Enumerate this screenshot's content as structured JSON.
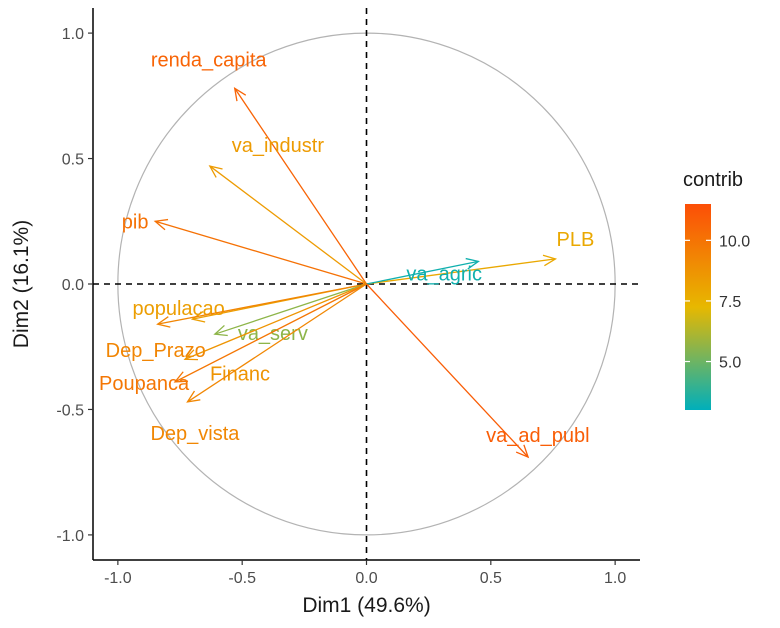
{
  "chart_data": {
    "type": "scatter",
    "subtype": "pca-variable-correlation-circle",
    "xlabel": "Dim1 (49.6%)",
    "ylabel": "Dim2 (16.1%)",
    "xlim": [
      -1.1,
      1.1
    ],
    "ylim": [
      -1.1,
      1.1
    ],
    "x_ticks": [
      -1.0,
      -0.5,
      0.0,
      0.5,
      1.0
    ],
    "y_ticks": [
      -1.0,
      -0.5,
      0.0,
      0.5,
      1.0
    ],
    "x_tick_labels": [
      "-1.0",
      "-0.5",
      "0.0",
      "0.5",
      "1.0"
    ],
    "y_tick_labels": [
      "-1.0",
      "-0.5",
      "0.0",
      "0.5",
      "1.0"
    ],
    "grid": false,
    "unit_circle": true,
    "reference_lines": {
      "x": 0,
      "y": 0,
      "style": "dashed"
    },
    "legend": {
      "title": "contrib",
      "placement": "right",
      "type": "colorbar",
      "range": [
        3.0,
        11.5
      ],
      "ticks": [
        5.0,
        7.5,
        10.0
      ],
      "tick_labels": [
        "5.0",
        "7.5",
        "10.0"
      ],
      "colors": [
        "#00AFBB",
        "#E7B800",
        "#FC4E07"
      ]
    },
    "variables": [
      {
        "name": "renda_capita",
        "x": -0.53,
        "y": 0.78,
        "contrib": 10.6
      },
      {
        "name": "va_industr",
        "x": -0.63,
        "y": 0.47,
        "contrib": 8.4
      },
      {
        "name": "pib",
        "x": -0.85,
        "y": 0.25,
        "contrib": 10.1
      },
      {
        "name": "PLB",
        "x": 0.76,
        "y": 0.1,
        "contrib": 7.9
      },
      {
        "name": "va_agric",
        "x": 0.45,
        "y": 0.09,
        "contrib": 3.3
      },
      {
        "name": "populacao",
        "x": -0.7,
        "y": -0.14,
        "contrib": 8.3
      },
      {
        "name": "Dep_Prazo",
        "x": -0.84,
        "y": -0.16,
        "contrib": 9.3
      },
      {
        "name": "va_serv",
        "x": -0.61,
        "y": -0.2,
        "contrib": 5.6
      },
      {
        "name": "Financ",
        "x": -0.73,
        "y": -0.3,
        "contrib": 8.7
      },
      {
        "name": "Poupanca",
        "x": -0.77,
        "y": -0.39,
        "contrib": 9.9
      },
      {
        "name": "Dep_vista",
        "x": -0.72,
        "y": -0.47,
        "contrib": 9.2
      },
      {
        "name": "va_ad_publ",
        "x": 0.65,
        "y": -0.69,
        "contrib": 10.9
      }
    ]
  }
}
